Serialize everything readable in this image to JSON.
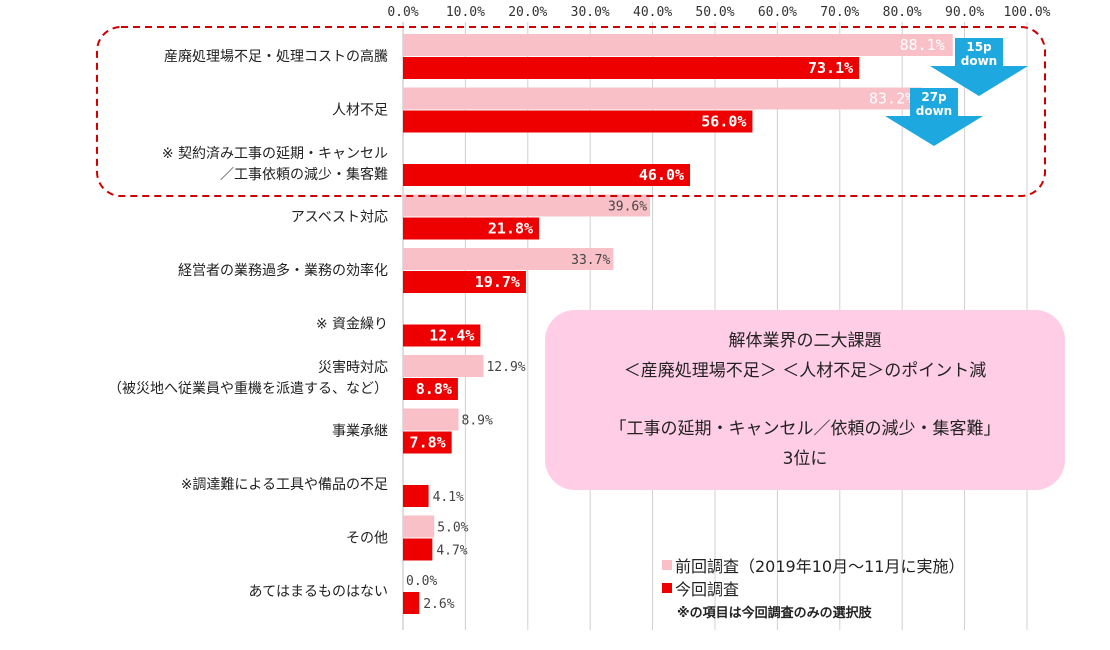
{
  "chart_data": {
    "type": "bar",
    "orientation": "horizontal",
    "xlim": [
      0,
      100
    ],
    "x_ticks": [
      "0.0%",
      "10.0%",
      "20.0%",
      "30.0%",
      "40.0%",
      "50.0%",
      "60.0%",
      "70.0%",
      "80.0%",
      "90.0%",
      "100.0%"
    ],
    "categories": [
      "産廃処理場不足・処理コストの高騰",
      "人材不足",
      "※ 契約済み工事の延期・キャンセル\n／工事依頼の減少・集客難",
      "アスベスト対応",
      "経営者の業務過多・業務の効率化",
      "※ 資金繰り",
      "災害時対応\n（被災地へ従業員や重機を派遣する、など）",
      "事業承継",
      "※調達難による工具や備品の不足",
      "その他",
      "あてはまるものはない"
    ],
    "series": [
      {
        "name": "前回調査（2019年10月～11月に実施）",
        "color": "#f9c1c7",
        "values": [
          88.1,
          83.2,
          null,
          39.6,
          33.7,
          null,
          12.9,
          8.9,
          null,
          5.0,
          0.0
        ],
        "labels": [
          "88.1%",
          "83.2%",
          "",
          "39.6%",
          "33.7%",
          "",
          "12.9%",
          "8.9%",
          "",
          "5.0%",
          "0.0%"
        ]
      },
      {
        "name": "今回調査",
        "color": "#ee0000",
        "values": [
          73.1,
          56.0,
          46.0,
          21.8,
          19.7,
          12.4,
          8.8,
          7.8,
          4.1,
          4.7,
          2.6
        ],
        "labels": [
          "73.1%",
          "56.0%",
          "46.0%",
          "21.8%",
          "19.7%",
          "12.4%",
          "8.8%",
          "7.8%",
          "4.1%",
          "4.7%",
          "2.6%"
        ]
      }
    ],
    "annotations": [
      {
        "target_category": 0,
        "text": [
          "15p",
          "down"
        ]
      },
      {
        "target_category": 1,
        "text": [
          "27p",
          "down"
        ]
      }
    ],
    "highlight_groups": [
      0,
      1,
      2
    ],
    "grid": true
  },
  "callout": {
    "line1": "解体業界の二大課題",
    "line2": "＜産廃処理場不足＞ ＜人材不足＞のポイント減",
    "line3": "「工事の延期・キャンセル／依頼の減少・集客難」",
    "line4": "3位に"
  },
  "legend": {
    "prev_label": "前回調査（2019年10月～11月に実施）",
    "curr_label": "今回調査",
    "note": "※の項目は今回調査のみの選択肢"
  },
  "colors": {
    "arrow": "#1ea8e0",
    "highlight_border": "#d00000",
    "grid": "#d0d0d0"
  }
}
